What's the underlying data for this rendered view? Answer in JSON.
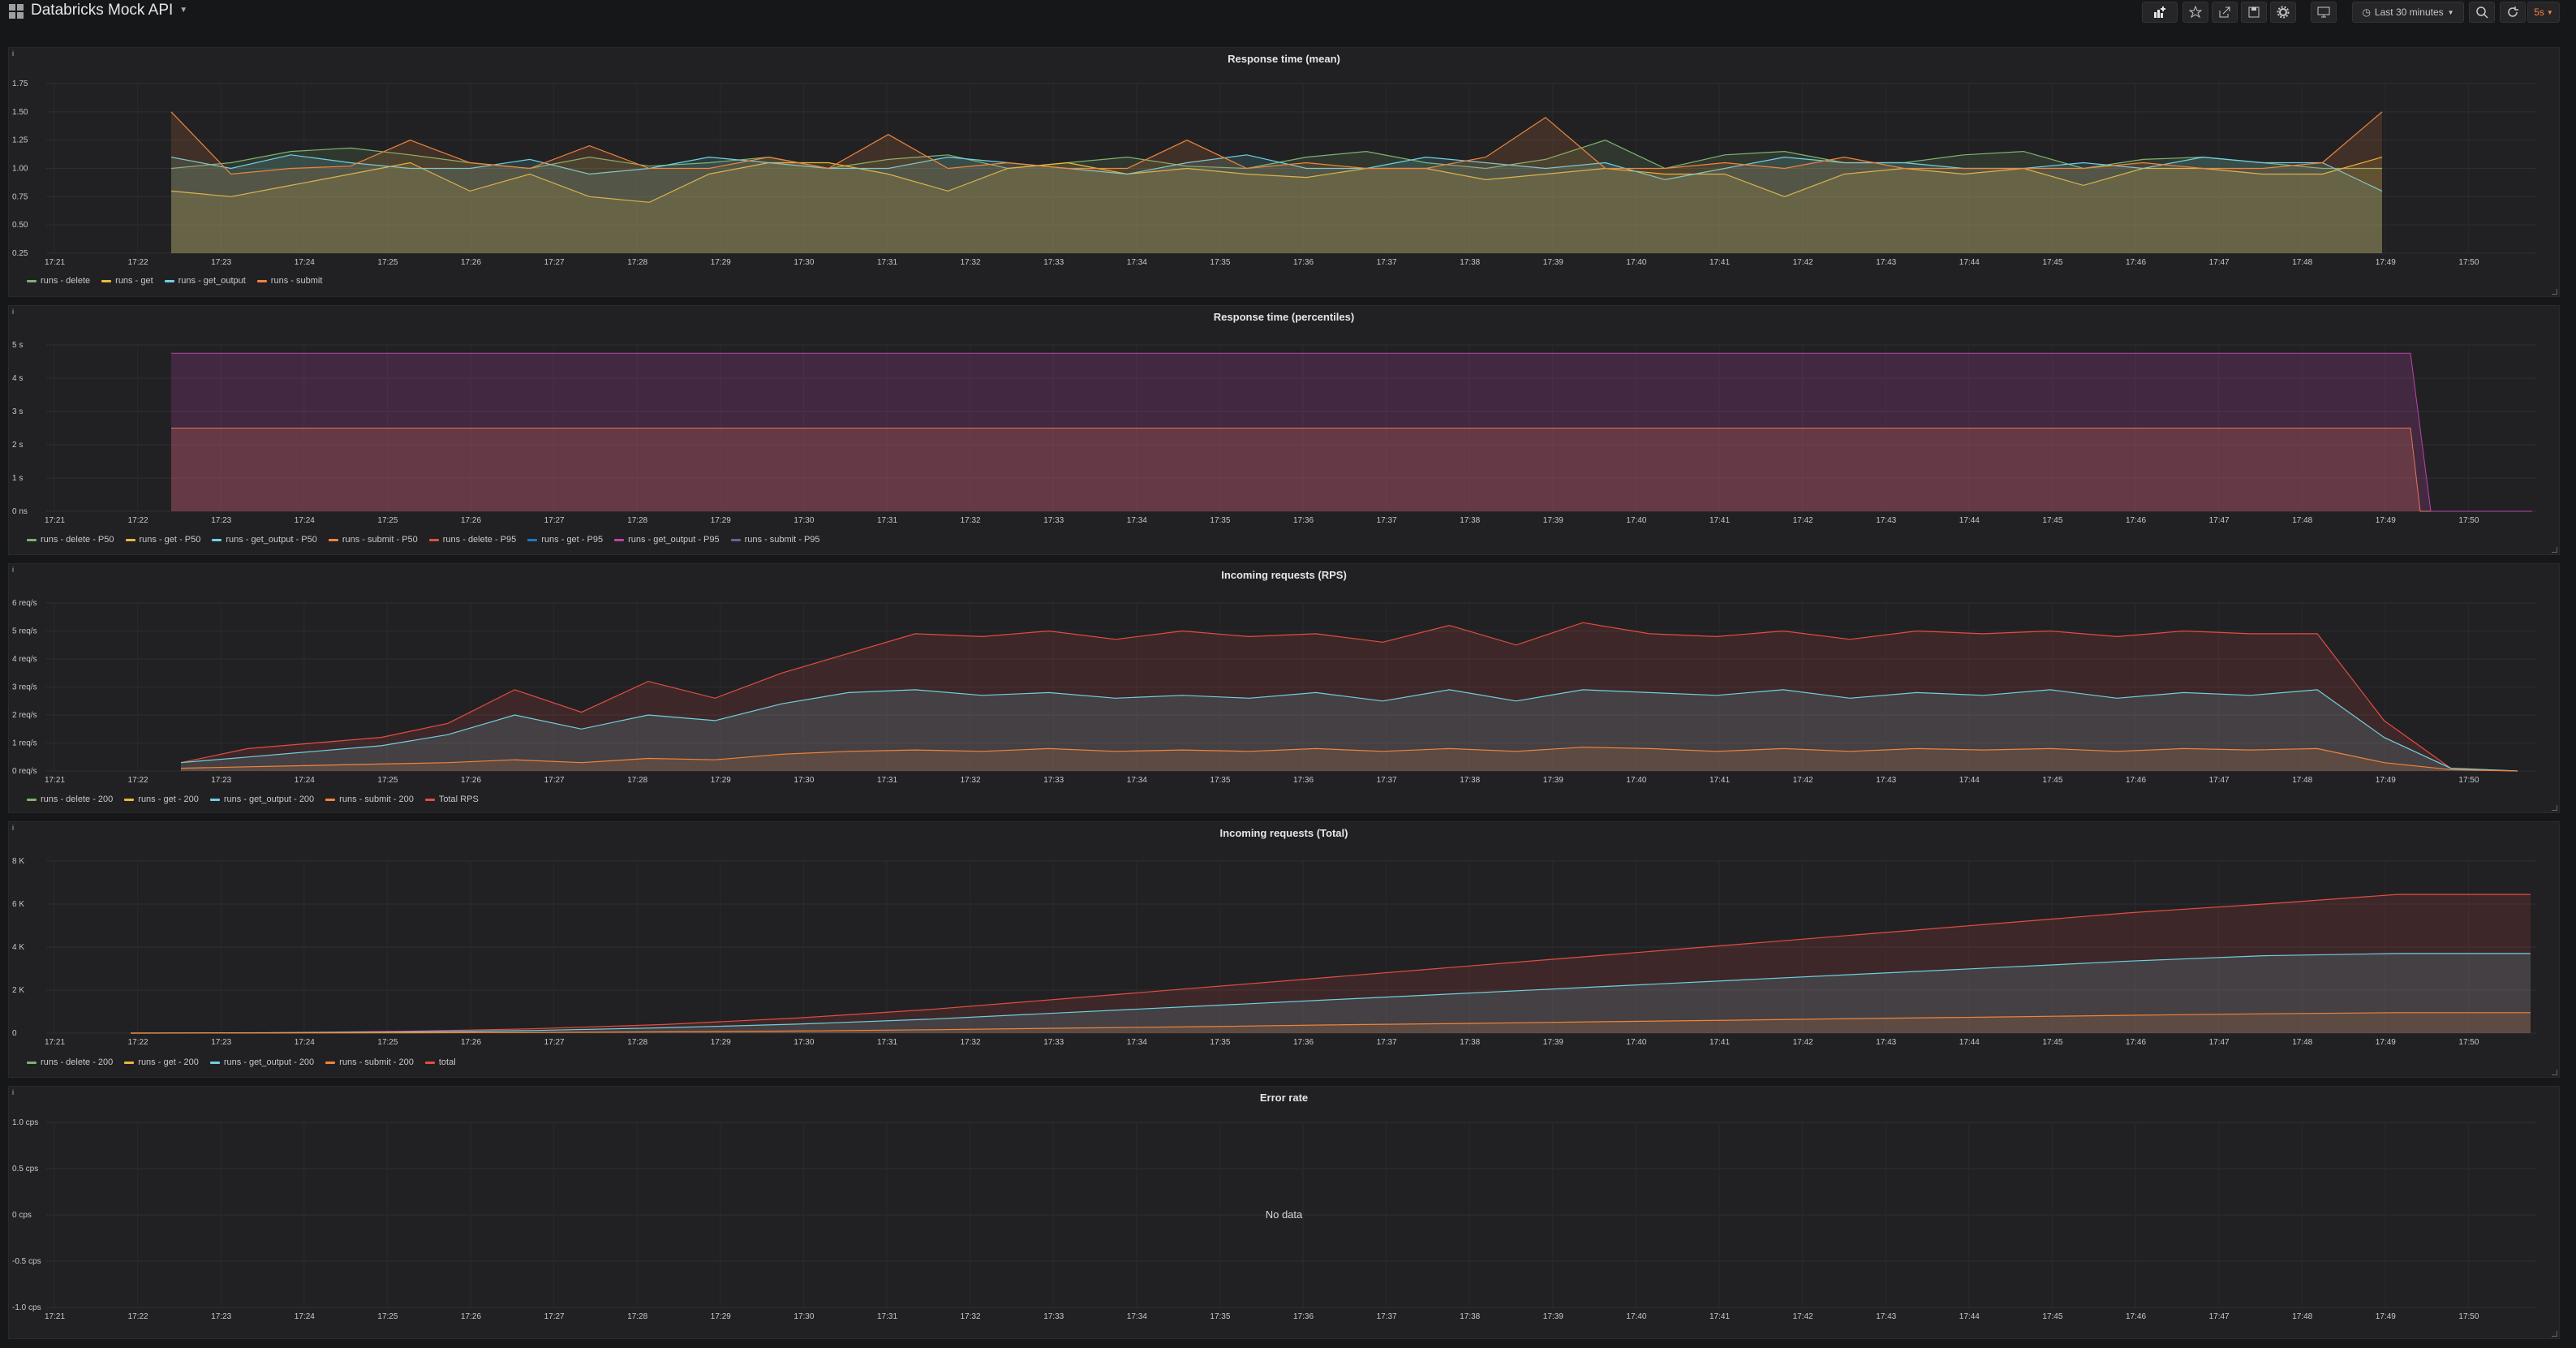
{
  "dashboard": {
    "title": "Databricks Mock API"
  },
  "toolbar": {
    "time_range": "Last 30 minutes",
    "refresh": "5s"
  },
  "colors": {
    "green": "#7eb26d",
    "yellow": "#eab839",
    "blue": "#6ed0e0",
    "orange": "#ef843c",
    "red": "#e24d42",
    "darkblue": "#1f78c1",
    "pink": "#ba43a9",
    "purple": "#705da0"
  },
  "x_ticks": [
    "17:21",
    "17:22",
    "17:23",
    "17:24",
    "17:25",
    "17:26",
    "17:27",
    "17:28",
    "17:29",
    "17:30",
    "17:31",
    "17:32",
    "17:33",
    "17:34",
    "17:35",
    "17:36",
    "17:37",
    "17:38",
    "17:39",
    "17:40",
    "17:41",
    "17:42",
    "17:43",
    "17:44",
    "17:45",
    "17:46",
    "17:47",
    "17:48",
    "17:49",
    "17:50"
  ],
  "panels": [
    {
      "title": "Response time (mean)",
      "legend": [
        {
          "label": "runs - delete",
          "color": "#7eb26d"
        },
        {
          "label": "runs - get",
          "color": "#eab839"
        },
        {
          "label": "runs - get_output",
          "color": "#6ed0e0"
        },
        {
          "label": "runs - submit",
          "color": "#ef843c"
        }
      ],
      "y_ticks": [
        "1.75",
        "1.50",
        "1.25",
        "1.00",
        "0.75",
        "0.50",
        "0.25"
      ],
      "chart_data": {
        "type": "area",
        "ylim": [
          0.25,
          1.75
        ],
        "x_range": [
          "17:21",
          "17:50:40"
        ],
        "series": [
          {
            "name": "runs - delete",
            "values": [
              1.0,
              1.05,
              1.15,
              1.18,
              1.12,
              1.05,
              1.0,
              1.1,
              1.02,
              1.05,
              1.1,
              1.0,
              1.08,
              1.12,
              1.0,
              1.05,
              1.1,
              1.02,
              1.0,
              1.1,
              1.15,
              1.05,
              1.0,
              1.08,
              1.25,
              1.0,
              1.12,
              1.15,
              1.05,
              1.05,
              1.12,
              1.15,
              1.0,
              1.08,
              1.1,
              1.05,
              1.0,
              1.0
            ]
          },
          {
            "name": "runs - get",
            "values": [
              0.8,
              0.75,
              0.85,
              0.95,
              1.05,
              0.8,
              0.95,
              0.75,
              0.7,
              0.95,
              1.05,
              1.05,
              0.95,
              0.8,
              1.0,
              1.05,
              0.95,
              1.0,
              0.95,
              0.92,
              1.0,
              1.0,
              0.9,
              0.95,
              1.0,
              0.95,
              0.95,
              0.75,
              0.95,
              1.0,
              0.95,
              1.0,
              0.85,
              1.0,
              1.0,
              0.95,
              0.95,
              1.1
            ]
          },
          {
            "name": "runs - get_output",
            "values": [
              1.1,
              1.0,
              1.12,
              1.05,
              1.0,
              1.0,
              1.08,
              0.95,
              1.0,
              1.1,
              1.05,
              1.0,
              1.0,
              1.1,
              1.05,
              1.0,
              0.95,
              1.05,
              1.12,
              1.0,
              1.0,
              1.1,
              1.05,
              1.0,
              1.05,
              0.9,
              1.0,
              1.1,
              1.05,
              1.05,
              1.0,
              1.0,
              1.05,
              1.0,
              1.1,
              1.05,
              1.05,
              0.8
            ]
          },
          {
            "name": "runs - submit",
            "values": [
              1.5,
              0.95,
              1.0,
              1.02,
              1.25,
              1.05,
              1.0,
              1.2,
              1.0,
              1.0,
              1.1,
              1.0,
              1.3,
              1.0,
              1.05,
              1.0,
              1.0,
              1.25,
              1.0,
              1.05,
              1.0,
              1.0,
              1.1,
              1.45,
              1.0,
              1.0,
              1.05,
              1.0,
              1.1,
              1.0,
              1.0,
              1.0,
              1.0,
              1.05,
              1.0,
              1.0,
              1.05,
              1.5
            ]
          }
        ]
      }
    },
    {
      "title": "Response time (percentiles)",
      "legend": [
        {
          "label": "runs - delete - P50",
          "color": "#7eb26d"
        },
        {
          "label": "runs - get - P50",
          "color": "#eab839"
        },
        {
          "label": "runs - get_output - P50",
          "color": "#6ed0e0"
        },
        {
          "label": "runs - submit - P50",
          "color": "#ef843c"
        },
        {
          "label": "runs - delete - P95",
          "color": "#e24d42"
        },
        {
          "label": "runs - get - P95",
          "color": "#1f78c1"
        },
        {
          "label": "runs - get_output - P95",
          "color": "#ba43a9"
        },
        {
          "label": "runs - submit - P95",
          "color": "#705da0"
        }
      ],
      "y_ticks": [
        "5 s",
        "4 s",
        "3 s",
        "2 s",
        "1 s",
        "0 ns"
      ],
      "chart_data": {
        "type": "area",
        "ylim": [
          0,
          5
        ],
        "x_range": [
          "17:21",
          "17:50:40"
        ],
        "series": [
          {
            "name": "P50",
            "values": [
              2.5
            ]
          },
          {
            "name": "P95",
            "values": [
              4.75
            ]
          }
        ]
      }
    },
    {
      "title": "Incoming requests (RPS)",
      "legend": [
        {
          "label": "runs - delete - 200",
          "color": "#7eb26d"
        },
        {
          "label": "runs - get - 200",
          "color": "#eab839"
        },
        {
          "label": "runs - get_output - 200",
          "color": "#6ed0e0"
        },
        {
          "label": "runs - submit - 200",
          "color": "#ef843c"
        },
        {
          "label": "Total RPS",
          "color": "#e24d42"
        }
      ],
      "y_ticks": [
        "6 req/s",
        "5 req/s",
        "4 req/s",
        "3 req/s",
        "2 req/s",
        "1 req/s",
        "0 req/s"
      ],
      "chart_data": {
        "type": "area",
        "ylim": [
          0,
          6
        ],
        "x_range": [
          "17:21",
          "17:50:40"
        ],
        "series": [
          {
            "name": "Total RPS",
            "values": [
              0.3,
              0.8,
              1.0,
              1.2,
              1.7,
              2.9,
              2.1,
              3.2,
              2.6,
              3.5,
              4.2,
              4.9,
              4.8,
              5.0,
              4.7,
              5.0,
              4.8,
              4.9,
              4.6,
              5.2,
              4.5,
              5.3,
              4.9,
              4.8,
              5.0,
              4.7,
              5.0,
              4.9,
              5.0,
              4.8,
              5.0,
              4.9,
              4.9,
              1.8,
              0.1,
              0.0
            ]
          },
          {
            "name": "runs - get_output - 200",
            "values": [
              0.3,
              0.5,
              0.7,
              0.9,
              1.3,
              2.0,
              1.5,
              2.0,
              1.8,
              2.4,
              2.8,
              2.9,
              2.7,
              2.8,
              2.6,
              2.7,
              2.6,
              2.8,
              2.5,
              2.9,
              2.5,
              2.9,
              2.8,
              2.7,
              2.9,
              2.6,
              2.8,
              2.7,
              2.9,
              2.6,
              2.8,
              2.7,
              2.9,
              1.2,
              0.1,
              0.0
            ]
          },
          {
            "name": "runs - submit - 200",
            "values": [
              0.1,
              0.15,
              0.2,
              0.25,
              0.3,
              0.4,
              0.3,
              0.45,
              0.4,
              0.6,
              0.7,
              0.75,
              0.7,
              0.8,
              0.7,
              0.75,
              0.7,
              0.8,
              0.7,
              0.8,
              0.7,
              0.85,
              0.8,
              0.7,
              0.8,
              0.7,
              0.8,
              0.75,
              0.8,
              0.7,
              0.8,
              0.75,
              0.8,
              0.3,
              0.05,
              0.0
            ]
          }
        ]
      }
    },
    {
      "title": "Incoming requests (Total)",
      "legend": [
        {
          "label": "runs - delete - 200",
          "color": "#7eb26d"
        },
        {
          "label": "runs - get - 200",
          "color": "#eab839"
        },
        {
          "label": "runs - get_output - 200",
          "color": "#6ed0e0"
        },
        {
          "label": "runs - submit - 200",
          "color": "#ef843c"
        },
        {
          "label": "total",
          "color": "#e24d42"
        }
      ],
      "y_ticks": [
        "8 K",
        "6 K",
        "4 K",
        "2 K",
        "0"
      ],
      "chart_data": {
        "type": "area",
        "ylim": [
          0,
          8000
        ],
        "x_range": [
          "17:21",
          "17:50:40"
        ],
        "series": [
          {
            "name": "total",
            "values": [
              0,
              20,
              80,
              200,
              400,
              700,
              1100,
              1600,
              2100,
              2600,
              3100,
              3600,
              4100,
              4600,
              5100,
              5600,
              6000,
              6450,
              6450
            ]
          },
          {
            "name": "runs - get_output - 200",
            "values": [
              0,
              15,
              50,
              120,
              250,
              420,
              650,
              950,
              1250,
              1550,
              1850,
              2150,
              2450,
              2750,
              3050,
              3350,
              3600,
              3700,
              3700
            ]
          },
          {
            "name": "runs - submit - 200",
            "values": [
              0,
              3,
              12,
              30,
              60,
              100,
              160,
              230,
              300,
              380,
              450,
              530,
              600,
              680,
              750,
              830,
              900,
              950,
              950
            ]
          }
        ]
      }
    },
    {
      "title": "Error rate",
      "legend": [],
      "y_ticks": [
        "1.0 cps",
        "0.5 cps",
        "0 cps",
        "-0.5 cps",
        "-1.0 cps"
      ],
      "no_data": "No data",
      "chart_data": {
        "type": "line",
        "ylim": [
          -1,
          1
        ],
        "series": []
      }
    }
  ]
}
